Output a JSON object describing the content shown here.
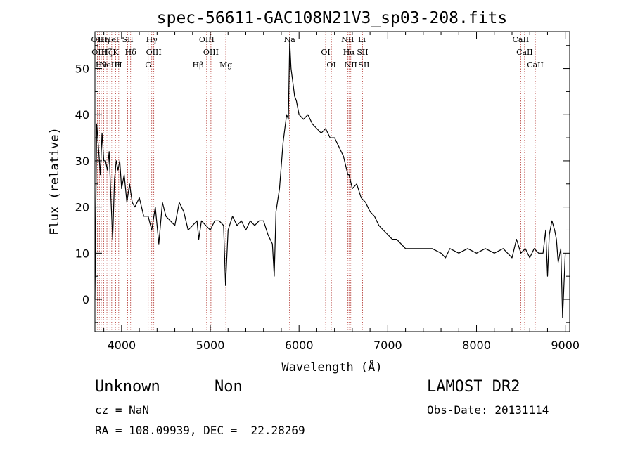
{
  "chart_data": {
    "type": "line",
    "title": "spec-56611-GAC108N21V3_sp03-208.fits",
    "xlabel": "Wavelength (Å)",
    "ylabel": "Flux (relative)",
    "xlim": [
      3700,
      9050
    ],
    "ylim": [
      -7,
      58
    ],
    "xticks": [
      4000,
      5000,
      6000,
      7000,
      8000,
      9000
    ],
    "yticks": [
      0,
      10,
      20,
      30,
      40,
      50
    ],
    "grid": false,
    "series": [
      {
        "color": "#000000",
        "x": [
          3700,
          3720,
          3740,
          3760,
          3780,
          3800,
          3820,
          3840,
          3860,
          3880,
          3900,
          3920,
          3940,
          3960,
          3980,
          4000,
          4030,
          4060,
          4090,
          4120,
          4150,
          4200,
          4250,
          4300,
          4340,
          4380,
          4420,
          4460,
          4500,
          4550,
          4600,
          4650,
          4700,
          4750,
          4800,
          4850,
          4870,
          4900,
          4950,
          5000,
          5050,
          5100,
          5150,
          5172,
          5200,
          5250,
          5300,
          5350,
          5400,
          5450,
          5500,
          5550,
          5600,
          5650,
          5700,
          5720,
          5740,
          5780,
          5820,
          5860,
          5880,
          5895,
          5910,
          5930,
          5950,
          5970,
          6000,
          6050,
          6100,
          6150,
          6200,
          6250,
          6300,
          6350,
          6400,
          6450,
          6500,
          6550,
          6563,
          6600,
          6650,
          6700,
          6750,
          6800,
          6850,
          6900,
          6950,
          7000,
          7050,
          7100,
          7150,
          7200,
          7300,
          7400,
          7500,
          7600,
          7650,
          7700,
          7800,
          7900,
          8000,
          8100,
          8200,
          8300,
          8400,
          8450,
          8500,
          8550,
          8600,
          8650,
          8700,
          8750,
          8780,
          8800,
          8820,
          8850,
          8880,
          8900,
          8920,
          8950,
          8970,
          9000
        ],
        "y": [
          0,
          38,
          33,
          27,
          36,
          30,
          30,
          28,
          32,
          22,
          13,
          26,
          30,
          28,
          30,
          24,
          27,
          21,
          25,
          21,
          20,
          22,
          18,
          18,
          15,
          20,
          12,
          21,
          18,
          17,
          16,
          21,
          19,
          15,
          16,
          17,
          13,
          17,
          16,
          15,
          17,
          17,
          16,
          3,
          15,
          18,
          16,
          17,
          15,
          17,
          16,
          17,
          17,
          14,
          12,
          5,
          19,
          24,
          34,
          40,
          39,
          56,
          50,
          47,
          44,
          43,
          40,
          39,
          40,
          38,
          37,
          36,
          37,
          35,
          35,
          33,
          31,
          27,
          27,
          24,
          25,
          22,
          21,
          19,
          18,
          16,
          15,
          14,
          13,
          13,
          12,
          11,
          11,
          11,
          11,
          10,
          9,
          11,
          10,
          11,
          10,
          11,
          10,
          11,
          9,
          13,
          10,
          11,
          9,
          11,
          10,
          10,
          15,
          5,
          14,
          17,
          15,
          13,
          8,
          11,
          -4,
          10
        ]
      }
    ],
    "line_markers": [
      {
        "x": 3727,
        "label": "OII"
      },
      {
        "x": 3750,
        "label": "OIII"
      },
      {
        "x": 3771,
        "label": "Hθ"
      },
      {
        "x": 3798,
        "label": "Hη"
      },
      {
        "x": 3835,
        "label": "Hζ"
      },
      {
        "x": 3869,
        "label": "NeIII"
      },
      {
        "x": 3889,
        "label": "HeI"
      },
      {
        "x": 3934,
        "label": "K"
      },
      {
        "x": 3968,
        "label": "H"
      },
      {
        "x": 4069,
        "label": "SII"
      },
      {
        "x": 4102,
        "label": "Hδ"
      },
      {
        "x": 4300,
        "label": "G"
      },
      {
        "x": 4340,
        "label": "Hγ"
      },
      {
        "x": 4363,
        "label": "OIII"
      },
      {
        "x": 4861,
        "label": "Hβ"
      },
      {
        "x": 4959,
        "label": "OIII"
      },
      {
        "x": 5007,
        "label": "OIII"
      },
      {
        "x": 5175,
        "label": "Mg"
      },
      {
        "x": 5893,
        "label": "Na"
      },
      {
        "x": 6300,
        "label": "OI"
      },
      {
        "x": 6364,
        "label": "OI"
      },
      {
        "x": 6548,
        "label": "NII"
      },
      {
        "x": 6563,
        "label": "Hα"
      },
      {
        "x": 6583,
        "label": "NII"
      },
      {
        "x": 6708,
        "label": "Li"
      },
      {
        "x": 6716,
        "label": "SII"
      },
      {
        "x": 6731,
        "label": "SII"
      },
      {
        "x": 8498,
        "label": "CaII"
      },
      {
        "x": 8542,
        "label": "CaII"
      },
      {
        "x": 8662,
        "label": "CaII"
      }
    ]
  },
  "info": {
    "class": "Unknown",
    "subclass": "Non",
    "survey": "LAMOST DR2",
    "cz": "cz = NaN",
    "obs_date": "Obs-Date: 20131114",
    "radec": "RA = 108.09939, DEC =  22.28269"
  }
}
